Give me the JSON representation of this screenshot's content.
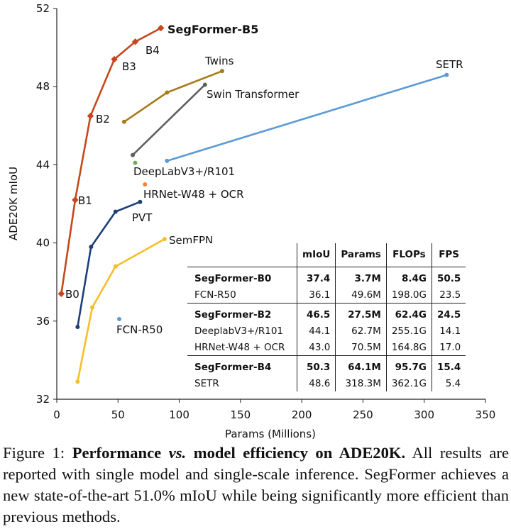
{
  "chart_data": {
    "type": "line",
    "xlabel": "Params (Millions)",
    "ylabel": "ADE20K mIoU",
    "xlim": [
      0,
      350
    ],
    "ylim": [
      32,
      52
    ],
    "xticks": [
      0,
      50,
      100,
      150,
      200,
      250,
      300,
      350
    ],
    "yticks": [
      32,
      36,
      40,
      44,
      48,
      52
    ],
    "series": [
      {
        "name": "SegFormer",
        "color": "#c5481d",
        "marker": "diamond",
        "points": [
          [
            3.7,
            37.4
          ],
          [
            15,
            42.2
          ],
          [
            27.5,
            46.5
          ],
          [
            47,
            49.4
          ],
          [
            64.1,
            50.3
          ],
          [
            85,
            51.0
          ]
        ],
        "labels": [
          "B0",
          "B1",
          "B2",
          "B3",
          "B4",
          "SegFormer-B5"
        ]
      },
      {
        "name": "Twins",
        "color": "#a67c1a",
        "marker": "circle",
        "points": [
          [
            55,
            46.2
          ],
          [
            90,
            47.7
          ],
          [
            135,
            48.8
          ]
        ]
      },
      {
        "name": "Swin Transformer",
        "color": "#5f5f5f",
        "marker": "circle",
        "points": [
          [
            62,
            44.5
          ],
          [
            121,
            48.1
          ]
        ]
      },
      {
        "name": "SETR",
        "color": "#5b9bd5",
        "marker": "circle",
        "points": [
          [
            90,
            44.2
          ],
          [
            318.3,
            48.6
          ]
        ]
      },
      {
        "name": "PVT",
        "color": "#1f3f78",
        "marker": "circle",
        "points": [
          [
            17,
            35.7
          ],
          [
            28,
            39.8
          ],
          [
            48,
            41.6
          ],
          [
            68,
            42.1
          ]
        ]
      },
      {
        "name": "SemFPN",
        "color": "#f6be2a",
        "marker": "circle",
        "points": [
          [
            17,
            32.9
          ],
          [
            29,
            36.7
          ],
          [
            48,
            38.8
          ],
          [
            88,
            40.2
          ]
        ]
      },
      {
        "name": "DeepLabV3+/R101",
        "color": "#6bb245",
        "marker": "circle",
        "points": [
          [
            64,
            44.1
          ]
        ]
      },
      {
        "name": "HRNet-W48 + OCR",
        "color": "#f0843c",
        "marker": "circle",
        "points": [
          [
            72,
            43.0
          ]
        ]
      },
      {
        "name": "FCN-R50",
        "color": "#5b9bd5",
        "marker": "circle",
        "points": [
          [
            51,
            36.1
          ]
        ]
      }
    ]
  },
  "table": {
    "headers": [
      "",
      "mIoU",
      "Params",
      "FLOPs",
      "FPS"
    ],
    "rows": [
      {
        "model": "SegFormer-B0",
        "miou": "37.4",
        "params": "3.7M",
        "flops": "8.4G",
        "fps": "50.5"
      },
      {
        "model": "FCN-R50",
        "miou": "36.1",
        "params": "49.6M",
        "flops": "198.0G",
        "fps": "23.5"
      },
      {
        "model": "SegFormer-B2",
        "miou": "46.5",
        "params": "27.5M",
        "flops": "62.4G",
        "fps": "24.5"
      },
      {
        "model": "DeeplabV3+/R101",
        "miou": "44.1",
        "params": "62.7M",
        "flops": "255.1G",
        "fps": "14.1"
      },
      {
        "model": "HRNet-W48 + OCR",
        "miou": "43.0",
        "params": "70.5M",
        "flops": "164.8G",
        "fps": "17.0"
      },
      {
        "model": "SegFormer-B4",
        "miou": "50.3",
        "params": "64.1M",
        "flops": "95.7G",
        "fps": "15.4"
      },
      {
        "model": "SETR",
        "miou": "48.6",
        "params": "318.3M",
        "flops": "362.1G",
        "fps": "5.4"
      }
    ]
  },
  "caption": {
    "label": "Figure 1:",
    "bold": "Performance",
    "vs": "vs.",
    "bold2": "model efficiency on ADE20K.",
    "text": "All results are reported with single model and single-scale inference. SegFormer achieves a new state-of-the-art 51.0% mIoU while being significantly more efficient than previous methods."
  }
}
